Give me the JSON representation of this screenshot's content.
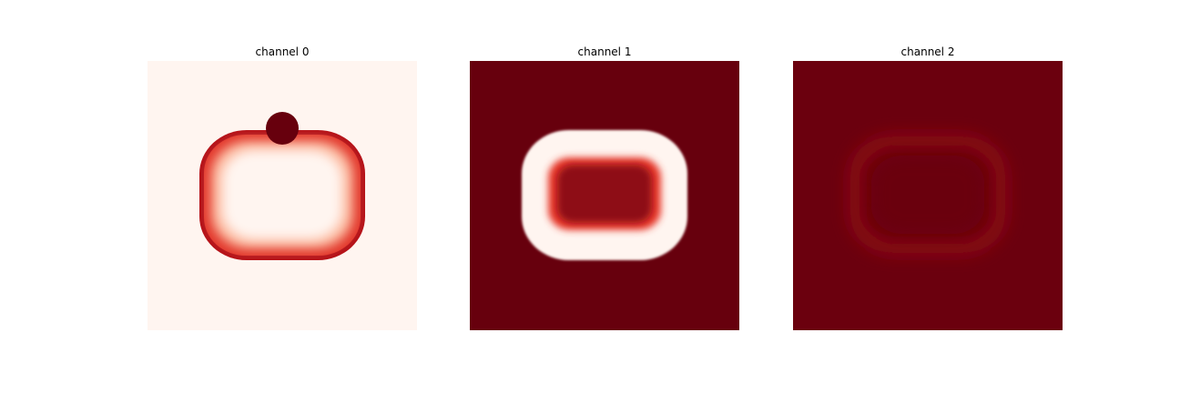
{
  "chart_data": [
    {
      "type": "heatmap",
      "title": "channel 0",
      "colormap": "Reds",
      "colors": {
        "low": "#fff5f0",
        "mid": "#fb6a4a",
        "high": "#67000d"
      },
      "background_level": 0.0,
      "ring_level": 0.8,
      "inner_level": 0.0,
      "blob_level": 1.0,
      "xticks": false,
      "yticks": false
    },
    {
      "type": "heatmap",
      "title": "channel 1",
      "colormap": "Reds",
      "colors": {
        "low": "#fff5f0",
        "mid": "#fb6a4a",
        "high": "#67000d"
      },
      "background_level": 1.0,
      "ring_level": 0.0,
      "inner_level": 0.9,
      "xticks": false,
      "yticks": false
    },
    {
      "type": "heatmap",
      "title": "channel 2",
      "colormap": "Reds",
      "colors": {
        "low": "#fff5f0",
        "mid": "#fb6a4a",
        "high": "#67000d"
      },
      "background_level": 1.0,
      "ring_level": 0.9,
      "inner_level": 1.0,
      "xticks": false,
      "yticks": false
    }
  ]
}
